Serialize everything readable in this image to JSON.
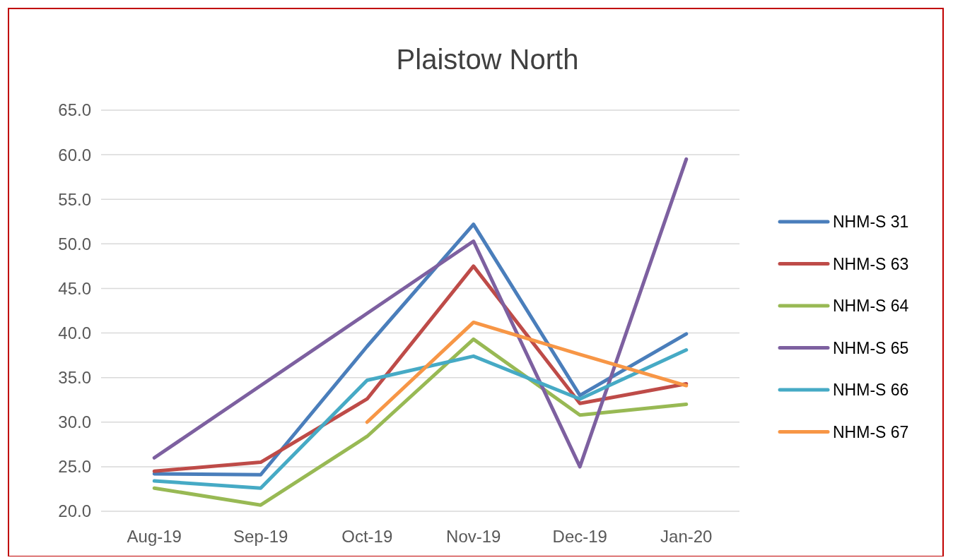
{
  "chart_data": {
    "type": "line",
    "title": "Plaistow North",
    "categories": [
      "Aug-19",
      "Sep-19",
      "Oct-19",
      "Nov-19",
      "Dec-19",
      "Jan-20"
    ],
    "series": [
      {
        "name": "NHM-S 31",
        "color": "#4a7ebb",
        "values": [
          24.2,
          24.1,
          38.5,
          52.2,
          33.0,
          39.9
        ]
      },
      {
        "name": "NHM-S 63",
        "color": "#be4b48",
        "values": [
          24.5,
          25.5,
          32.6,
          47.5,
          32.1,
          34.3
        ]
      },
      {
        "name": "NHM-S 64",
        "color": "#98b954",
        "values": [
          22.6,
          20.7,
          28.4,
          39.3,
          30.8,
          32.0
        ]
      },
      {
        "name": "NHM-S 65",
        "color": "#7d60a0",
        "values": [
          26.0,
          34.1,
          42.2,
          50.3,
          25.0,
          59.5
        ]
      },
      {
        "name": "NHM-S 66",
        "color": "#46aac5",
        "values": [
          23.4,
          22.6,
          34.7,
          37.4,
          32.6,
          38.1
        ]
      },
      {
        "name": "NHM-S 67",
        "color": "#f79646",
        "values": [
          null,
          null,
          30.0,
          41.2,
          37.6,
          34.1
        ]
      }
    ],
    "ylim": [
      20,
      65
    ],
    "yticks": [
      {
        "value": 20,
        "label": "20.0"
      },
      {
        "value": 25,
        "label": "25.0"
      },
      {
        "value": 30,
        "label": "30.0"
      },
      {
        "value": 35,
        "label": "35.0"
      },
      {
        "value": 40,
        "label": "40.0"
      },
      {
        "value": 45,
        "label": "45.0"
      },
      {
        "value": 50,
        "label": "50.0"
      },
      {
        "value": 55,
        "label": "55.0"
      },
      {
        "value": 60,
        "label": "60.0"
      },
      {
        "value": 65,
        "label": "65.0"
      }
    ],
    "grid": "y",
    "legend": "right",
    "marker": "none",
    "line_style": "solid"
  }
}
